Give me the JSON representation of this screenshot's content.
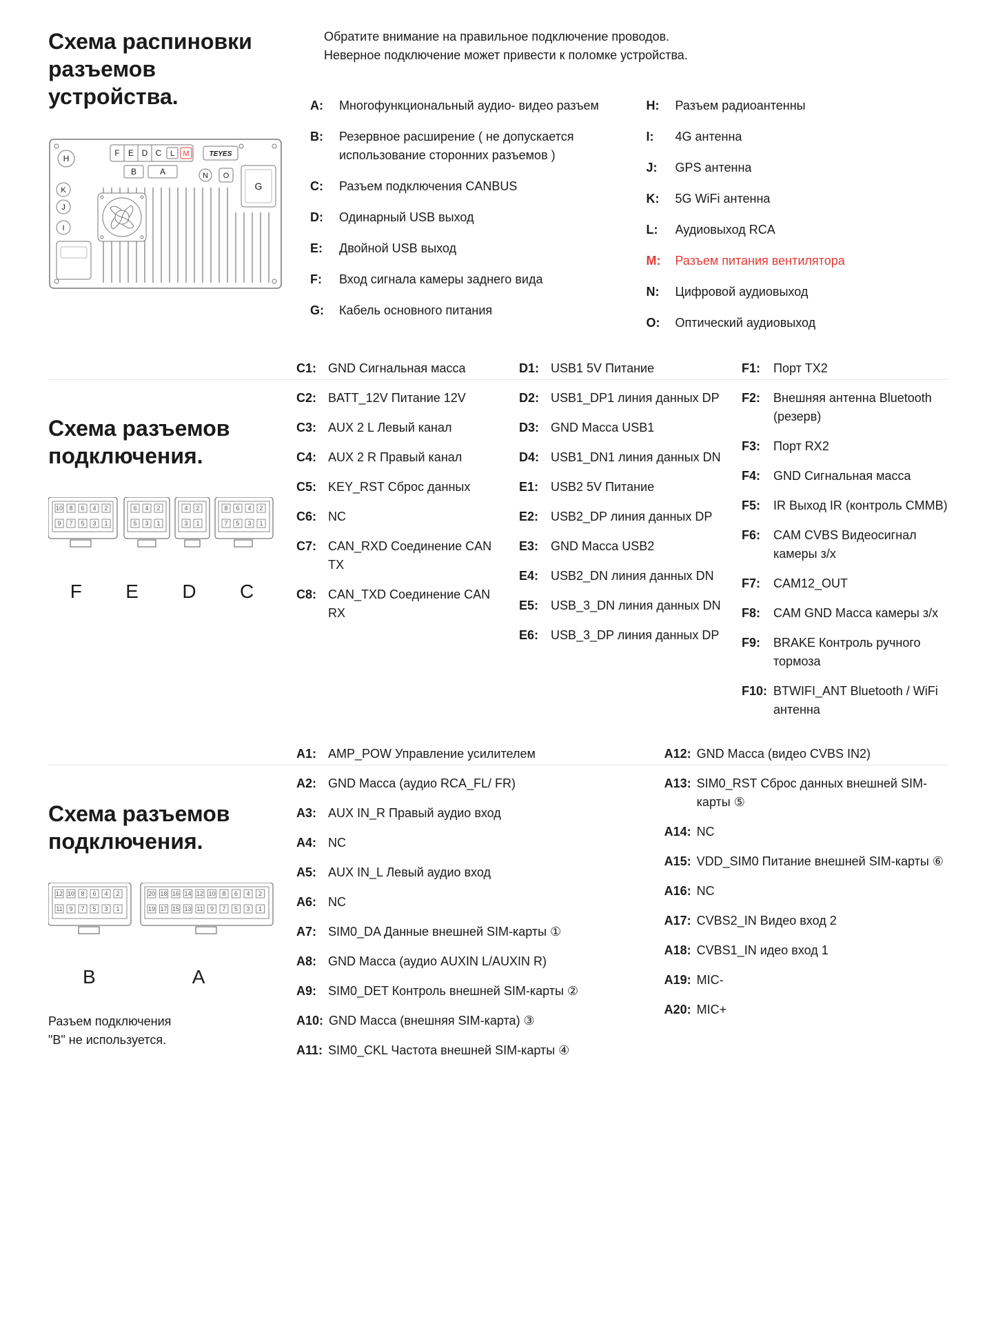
{
  "section1": {
    "title": "Схема распиновки разъемов устройства.",
    "warning_l1": "Обратите внимание на правильное подключение проводов.",
    "warning_l2": "Неверное подключение может привести к поломке устройства.",
    "brand": "TEYES",
    "defs_left": [
      {
        "k": "A:",
        "v": "Многофункциональный аудио- видео разъем"
      },
      {
        "k": "B:",
        "v": "Резервное расширение ( не допускается использование сторонних разъемов )"
      },
      {
        "k": "C:",
        "v": "Разъем подключения CANBUS"
      },
      {
        "k": "D:",
        "v": "Одинарный USB выход"
      },
      {
        "k": "E:",
        "v": "Двойной USB выход"
      },
      {
        "k": "F:",
        "v": "Вход сигнала камеры заднего вида"
      },
      {
        "k": "G:",
        "v": "Кабель основного питания"
      }
    ],
    "defs_right": [
      {
        "k": "H:",
        "v": "Разъем радиоантенны"
      },
      {
        "k": "I:",
        "v": "4G антенна"
      },
      {
        "k": "J:",
        "v": "GPS антенна"
      },
      {
        "k": "K:",
        "v": "5G WiFi антенна"
      },
      {
        "k": "L:",
        "v": "Аудиовыход RCA"
      },
      {
        "k": "M:",
        "v": "Разъем питания вентилятора",
        "red": true
      },
      {
        "k": "N:",
        "v": "Цифровой аудиовыход"
      },
      {
        "k": "O:",
        "v": "Оптический аудиовыход"
      }
    ]
  },
  "section2": {
    "title": "Схема разъемов подключения.",
    "labels": [
      "F",
      "E",
      "D",
      "C"
    ],
    "col_c": [
      {
        "k": "C1:",
        "v": "GND Сигнальная масса"
      },
      {
        "k": "C2:",
        "v": "BATT_12V Питание 12V"
      },
      {
        "k": "C3:",
        "v": "AUX 2 L Левый канал"
      },
      {
        "k": "C4:",
        "v": "AUX 2 R Правый канал"
      },
      {
        "k": "C5:",
        "v": "KEY_RST Сброс данных"
      },
      {
        "k": "C6:",
        "v": "NC"
      },
      {
        "k": "C7:",
        "v": "CAN_RXD Соединение CAN TX"
      },
      {
        "k": "C8:",
        "v": "CAN_TXD Соединение CAN RX"
      }
    ],
    "col_d": [
      {
        "k": "D1:",
        "v": "USB1 5V Питание"
      },
      {
        "k": "D2:",
        "v": "USB1_DP1 линия данных DP"
      },
      {
        "k": "D3:",
        "v": "GND Масса USB1"
      },
      {
        "k": "D4:",
        "v": "USB1_DN1 линия данных DN"
      },
      {
        "k": "E1:",
        "v": "USB2 5V Питание"
      },
      {
        "k": "E2:",
        "v": "USB2_DP линия данных DP"
      },
      {
        "k": "E3:",
        "v": "GND Масса USB2"
      },
      {
        "k": "E4:",
        "v": "USB2_DN линия данных DN"
      },
      {
        "k": "E5:",
        "v": "USB_3_DN линия данных DN"
      },
      {
        "k": "E6:",
        "v": "USB_3_DP линия данных DP"
      }
    ],
    "col_f": [
      {
        "k": "F1:",
        "v": "Порт TX2"
      },
      {
        "k": "F2:",
        "v": "Внешняя антенна Bluetooth (резерв)"
      },
      {
        "k": "F3:",
        "v": "Порт RX2"
      },
      {
        "k": "F4:",
        "v": "GND Сигнальная масса"
      },
      {
        "k": "F5:",
        "v": "IR Выход IR (контроль CMMB)"
      },
      {
        "k": "F6:",
        "v": "CAM CVBS Видеосигнал камеры з/х"
      },
      {
        "k": "F7:",
        "v": "CAM12_OUT"
      },
      {
        "k": "F8:",
        "v": "CAM GND Масса камеры з/х"
      },
      {
        "k": "F9:",
        "v": "BRAKE Контроль ручного тормоза"
      },
      {
        "k": "F10:",
        "v": "BTWIFI_ANT Bluetooth / WiFi антенна"
      }
    ]
  },
  "section3": {
    "title": "Схема разъемов подключения.",
    "labels": [
      "B",
      "A"
    ],
    "note_l1": "Разъем подключения",
    "note_l2": "\"В\" не используется.",
    "col_a1": [
      {
        "k": "A1:",
        "v": "AMP_POW Управление усилителем"
      },
      {
        "k": "A2:",
        "v": "GND Масса (аудио RCA_FL/ FR)"
      },
      {
        "k": "A3:",
        "v": "AUX IN_R Правый аудио вход"
      },
      {
        "k": "A4:",
        "v": "NC"
      },
      {
        "k": "A5:",
        "v": "AUX IN_L Левый аудио вход"
      },
      {
        "k": "A6:",
        "v": "NC"
      },
      {
        "k": "A7:",
        "v": "SIM0_DA Данные внешней SIM-карты ①"
      },
      {
        "k": "A8:",
        "v": "GND Масса (аудио AUXIN L/AUXIN R)"
      },
      {
        "k": "A9:",
        "v": "SIM0_DET Контроль внешней SIM-карты ②"
      },
      {
        "k": "A10:",
        "v": "GND Масса (внешняя SIM-карта) ③"
      },
      {
        "k": "A11:",
        "v": "SIM0_CKL Частота внешней SIM-карты ④"
      }
    ],
    "col_a2": [
      {
        "k": "A12:",
        "v": "GND Масса (видео CVBS IN2)"
      },
      {
        "k": "A13:",
        "v": "SIM0_RST Сброс данных внешней SIM-карты ⑤"
      },
      {
        "k": "A14:",
        "v": "NC"
      },
      {
        "k": "A15:",
        "v": "VDD_SIM0 Питание внешней SIM-карты ⑥"
      },
      {
        "k": "A16:",
        "v": "NC"
      },
      {
        "k": "A17:",
        "v": "CVBS2_IN Видео вход 2"
      },
      {
        "k": "A18:",
        "v": "CVBS1_IN идео вход 1"
      },
      {
        "k": "A19:",
        "v": "MIC-"
      },
      {
        "k": "A20:",
        "v": "MIC+"
      }
    ]
  }
}
